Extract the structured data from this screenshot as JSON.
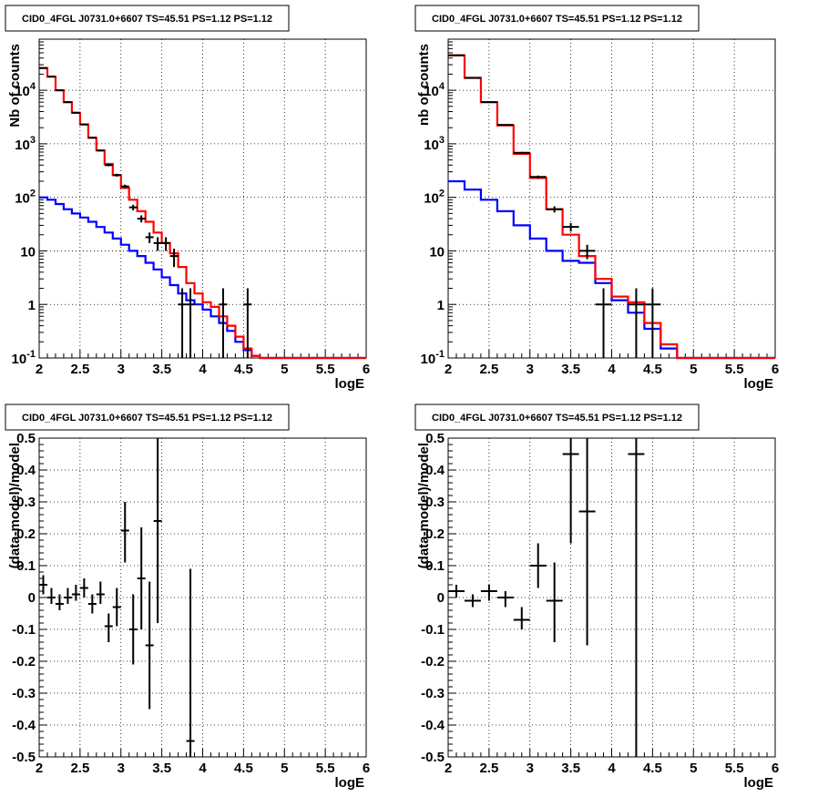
{
  "colors": {
    "data": "#000000",
    "total_model": "#ff0000",
    "background_model": "#0000ff"
  },
  "chart_data": [
    {
      "type": "line",
      "title": "CID0_4FGL J0731.0+6607 TS=45.51 PS=1.12 PS=1.12",
      "xlabel": "logE",
      "ylabel": "Nb of counts",
      "xlim": [
        2,
        6
      ],
      "ylim": [
        0.1,
        90000
      ],
      "yscale": "log",
      "grid": true,
      "xticks": [
        "2",
        "2.5",
        "3",
        "3.5",
        "4",
        "4.5",
        "5",
        "5.5",
        "6"
      ],
      "yticks": [
        {
          "value": 0.1,
          "label": "10",
          "sup": "-1"
        },
        {
          "value": 1,
          "label": "1",
          "sup": ""
        },
        {
          "value": 10,
          "label": "10",
          "sup": ""
        },
        {
          "value": 100,
          "label": "10",
          "sup": "2"
        },
        {
          "value": 1000,
          "label": "10",
          "sup": "3"
        },
        {
          "value": 10000,
          "label": "10",
          "sup": "4"
        }
      ],
      "bin_edges": [
        2.0,
        2.1,
        2.2,
        2.3,
        2.4,
        2.5,
        2.6,
        2.7,
        2.8,
        2.9,
        3.0,
        3.1,
        3.2,
        3.3,
        3.4,
        3.5,
        3.6,
        3.7,
        3.8,
        3.9,
        4.0,
        4.1,
        4.2,
        4.3,
        4.4,
        4.5,
        4.6,
        4.7,
        4.8,
        4.9,
        5.0,
        5.1,
        5.2,
        5.3,
        5.4,
        5.5,
        5.6,
        5.7,
        5.8,
        5.9,
        6.0
      ],
      "series": [
        {
          "role": "total_model",
          "values": [
            26000,
            18000,
            10000,
            6000,
            3800,
            2300,
            1300,
            750,
            420,
            260,
            150,
            90,
            55,
            35,
            22,
            14,
            9,
            5,
            2.5,
            1.6,
            1.1,
            0.9,
            0.6,
            0.4,
            0.25,
            0.15,
            0.11,
            0.1,
            0.1,
            0.1,
            0.1,
            0.1,
            0.1,
            0.1,
            0.1,
            0.1,
            0.1,
            0.1,
            0.1,
            0.1
          ]
        },
        {
          "role": "background_model",
          "values": [
            100,
            90,
            75,
            60,
            50,
            42,
            35,
            28,
            22,
            17,
            13,
            10,
            8,
            6,
            4.5,
            3.2,
            2.3,
            1.6,
            1.2,
            1.0,
            0.8,
            0.6,
            0.45,
            0.32,
            0.2,
            0.14,
            0.11,
            0.1,
            0.1,
            0.1,
            0.1,
            0.1,
            0.1,
            0.1,
            0.1,
            0.1,
            0.1,
            0.1,
            0.1,
            0.1
          ]
        }
      ],
      "points": [
        {
          "x": 2.05,
          "y": 26000,
          "ylo": 25840,
          "yhi": 26160
        },
        {
          "x": 2.15,
          "y": 18000,
          "ylo": 17870,
          "yhi": 18130
        },
        {
          "x": 2.25,
          "y": 10000,
          "ylo": 9900,
          "yhi": 10100
        },
        {
          "x": 2.35,
          "y": 6000,
          "ylo": 5920,
          "yhi": 6080
        },
        {
          "x": 2.45,
          "y": 3800,
          "ylo": 3740,
          "yhi": 3860
        },
        {
          "x": 2.55,
          "y": 2300,
          "ylo": 2250,
          "yhi": 2350
        },
        {
          "x": 2.65,
          "y": 1300,
          "ylo": 1265,
          "yhi": 1335
        },
        {
          "x": 2.75,
          "y": 750,
          "ylo": 723,
          "yhi": 777
        },
        {
          "x": 2.85,
          "y": 400,
          "ylo": 380,
          "yhi": 420
        },
        {
          "x": 2.95,
          "y": 260,
          "ylo": 244,
          "yhi": 276
        },
        {
          "x": 3.05,
          "y": 160,
          "ylo": 147,
          "yhi": 173
        },
        {
          "x": 3.15,
          "y": 65,
          "ylo": 57,
          "yhi": 73
        },
        {
          "x": 3.25,
          "y": 40,
          "ylo": 34,
          "yhi": 46
        },
        {
          "x": 3.35,
          "y": 18,
          "ylo": 14,
          "yhi": 22
        },
        {
          "x": 3.45,
          "y": 14,
          "ylo": 10,
          "yhi": 18
        },
        {
          "x": 3.55,
          "y": 14,
          "ylo": 10,
          "yhi": 18
        },
        {
          "x": 3.65,
          "y": 8,
          "ylo": 5,
          "yhi": 11
        },
        {
          "x": 3.75,
          "y": 1,
          "ylo": 0.1,
          "yhi": 2
        },
        {
          "x": 3.85,
          "y": 1,
          "ylo": 0.1,
          "yhi": 2
        },
        {
          "x": 4.25,
          "y": 1,
          "ylo": 0.1,
          "yhi": 2
        },
        {
          "x": 4.55,
          "y": 1,
          "ylo": 0.1,
          "yhi": 2
        }
      ]
    },
    {
      "type": "line",
      "title": "CID0_4FGL J0731.0+6607 TS=45.51 PS=1.12 PS=1.12",
      "xlabel": "logE",
      "ylabel": "nb of counts",
      "xlim": [
        2,
        6
      ],
      "ylim": [
        0.1,
        90000
      ],
      "yscale": "log",
      "grid": true,
      "xticks": [
        "2",
        "2.5",
        "3",
        "3.5",
        "4",
        "4.5",
        "5",
        "5.5",
        "6"
      ],
      "yticks": [
        {
          "value": 0.1,
          "label": "10",
          "sup": "-1"
        },
        {
          "value": 1,
          "label": "1",
          "sup": ""
        },
        {
          "value": 10,
          "label": "10",
          "sup": ""
        },
        {
          "value": 100,
          "label": "10",
          "sup": "2"
        },
        {
          "value": 1000,
          "label": "10",
          "sup": "3"
        },
        {
          "value": 10000,
          "label": "10",
          "sup": "4"
        }
      ],
      "bin_edges": [
        2.0,
        2.2,
        2.4,
        2.6,
        2.8,
        3.0,
        3.2,
        3.4,
        3.6,
        3.8,
        4.0,
        4.2,
        4.4,
        4.6,
        4.8,
        5.0,
        5.2,
        5.4,
        5.6,
        5.8,
        6.0
      ],
      "series": [
        {
          "role": "total_model",
          "values": [
            45000,
            17000,
            6000,
            2200,
            650,
            230,
            60,
            20,
            8,
            3,
            1.4,
            1.1,
            0.45,
            0.18,
            0.1,
            0.1,
            0.1,
            0.1,
            0.1,
            0.1
          ]
        },
        {
          "role": "background_model",
          "values": [
            200,
            140,
            90,
            55,
            30,
            17,
            10,
            6.5,
            6,
            2.5,
            1.2,
            0.7,
            0.35,
            0.15,
            0.1,
            0.1,
            0.1,
            0.1,
            0.1,
            0.1
          ]
        }
      ],
      "points": [
        {
          "x": 2.1,
          "y": 45000,
          "ylo": 44790,
          "yhi": 45210
        },
        {
          "x": 2.3,
          "y": 17000,
          "ylo": 16870,
          "yhi": 17130
        },
        {
          "x": 2.5,
          "y": 6000,
          "ylo": 5920,
          "yhi": 6080
        },
        {
          "x": 2.7,
          "y": 2250,
          "ylo": 2200,
          "yhi": 2300
        },
        {
          "x": 2.9,
          "y": 680,
          "ylo": 654,
          "yhi": 706
        },
        {
          "x": 3.1,
          "y": 240,
          "ylo": 225,
          "yhi": 255
        },
        {
          "x": 3.3,
          "y": 60,
          "ylo": 52,
          "yhi": 68
        },
        {
          "x": 3.5,
          "y": 28,
          "ylo": 23,
          "yhi": 33
        },
        {
          "x": 3.7,
          "y": 10,
          "ylo": 7,
          "yhi": 13
        },
        {
          "x": 3.9,
          "y": 1,
          "ylo": 0.1,
          "yhi": 2
        },
        {
          "x": 4.3,
          "y": 1,
          "ylo": 0.1,
          "yhi": 2
        },
        {
          "x": 4.5,
          "y": 1,
          "ylo": 0.1,
          "yhi": 2
        }
      ]
    },
    {
      "type": "scatter",
      "title": "CID0_4FGL J0731.0+6607 TS=45.51 PS=1.12 PS=1.12",
      "xlabel": "logE",
      "ylabel": "(data-model)/model",
      "xlim": [
        2,
        6
      ],
      "ylim": [
        -0.5,
        0.5
      ],
      "yscale": "linear",
      "grid": true,
      "xticks": [
        "2",
        "2.5",
        "3",
        "3.5",
        "4",
        "4.5",
        "5",
        "5.5",
        "6"
      ],
      "yticks": [
        "-0.5",
        "-0.4",
        "-0.3",
        "-0.2",
        "-0.1",
        "0",
        "0.1",
        "0.2",
        "0.3",
        "0.4",
        "0.5"
      ],
      "points": [
        {
          "x": 2.05,
          "y": 0.04,
          "ylo": 0.01,
          "yhi": 0.07,
          "xw": 0.05
        },
        {
          "x": 2.15,
          "y": 0.0,
          "ylo": -0.02,
          "yhi": 0.03,
          "xw": 0.05
        },
        {
          "x": 2.25,
          "y": -0.02,
          "ylo": -0.04,
          "yhi": 0.01,
          "xw": 0.05
        },
        {
          "x": 2.35,
          "y": 0.0,
          "ylo": -0.02,
          "yhi": 0.03,
          "xw": 0.05
        },
        {
          "x": 2.45,
          "y": 0.01,
          "ylo": -0.01,
          "yhi": 0.04,
          "xw": 0.05
        },
        {
          "x": 2.55,
          "y": 0.03,
          "ylo": 0.0,
          "yhi": 0.06,
          "xw": 0.05
        },
        {
          "x": 2.65,
          "y": -0.02,
          "ylo": -0.05,
          "yhi": 0.01,
          "xw": 0.05
        },
        {
          "x": 2.75,
          "y": 0.01,
          "ylo": -0.02,
          "yhi": 0.05,
          "xw": 0.05
        },
        {
          "x": 2.85,
          "y": -0.09,
          "ylo": -0.14,
          "yhi": -0.05,
          "xw": 0.05
        },
        {
          "x": 2.95,
          "y": -0.03,
          "ylo": -0.09,
          "yhi": 0.03,
          "xw": 0.05
        },
        {
          "x": 3.05,
          "y": 0.21,
          "ylo": 0.11,
          "yhi": 0.3,
          "xw": 0.05
        },
        {
          "x": 3.15,
          "y": -0.1,
          "ylo": -0.21,
          "yhi": 0.01,
          "xw": 0.05
        },
        {
          "x": 3.25,
          "y": 0.06,
          "ylo": -0.1,
          "yhi": 0.22,
          "xw": 0.05
        },
        {
          "x": 3.35,
          "y": -0.15,
          "ylo": -0.35,
          "yhi": 0.05,
          "xw": 0.05
        },
        {
          "x": 3.45,
          "y": 0.24,
          "ylo": -0.08,
          "yhi": 0.5,
          "xw": 0.05
        },
        {
          "x": 3.85,
          "y": -0.45,
          "ylo": -0.5,
          "yhi": 0.09,
          "xw": 0.05
        }
      ]
    },
    {
      "type": "scatter",
      "title": "CID0_4FGL J0731.0+6607 TS=45.51 PS=1.12 PS=1.12",
      "xlabel": "logE",
      "ylabel": "(data-model)/model",
      "xlim": [
        2,
        6
      ],
      "ylim": [
        -0.5,
        0.5
      ],
      "yscale": "linear",
      "grid": true,
      "xticks": [
        "2",
        "2.5",
        "3",
        "3.5",
        "4",
        "4.5",
        "5",
        "5.5",
        "6"
      ],
      "yticks": [
        "-0.5",
        "-0.4",
        "-0.3",
        "-0.2",
        "-0.1",
        "0",
        "0.1",
        "0.2",
        "0.3",
        "0.4",
        "0.5"
      ],
      "points": [
        {
          "x": 2.1,
          "y": 0.02,
          "ylo": 0.0,
          "yhi": 0.04,
          "xw": 0.1
        },
        {
          "x": 2.3,
          "y": -0.01,
          "ylo": -0.03,
          "yhi": 0.01,
          "xw": 0.1
        },
        {
          "x": 2.5,
          "y": 0.02,
          "ylo": -0.01,
          "yhi": 0.04,
          "xw": 0.1
        },
        {
          "x": 2.7,
          "y": 0.0,
          "ylo": -0.03,
          "yhi": 0.02,
          "xw": 0.1
        },
        {
          "x": 2.9,
          "y": -0.07,
          "ylo": -0.1,
          "yhi": -0.03,
          "xw": 0.1
        },
        {
          "x": 3.1,
          "y": 0.1,
          "ylo": 0.03,
          "yhi": 0.17,
          "xw": 0.1
        },
        {
          "x": 3.3,
          "y": -0.01,
          "ylo": -0.14,
          "yhi": 0.11,
          "xw": 0.1
        },
        {
          "x": 3.5,
          "y": 0.45,
          "ylo": 0.17,
          "yhi": 0.5,
          "xw": 0.1
        },
        {
          "x": 3.7,
          "y": 0.27,
          "ylo": -0.15,
          "yhi": 0.5,
          "xw": 0.1
        },
        {
          "x": 4.3,
          "y": 0.45,
          "ylo": -0.5,
          "yhi": 0.5,
          "xw": 0.1
        }
      ]
    }
  ]
}
